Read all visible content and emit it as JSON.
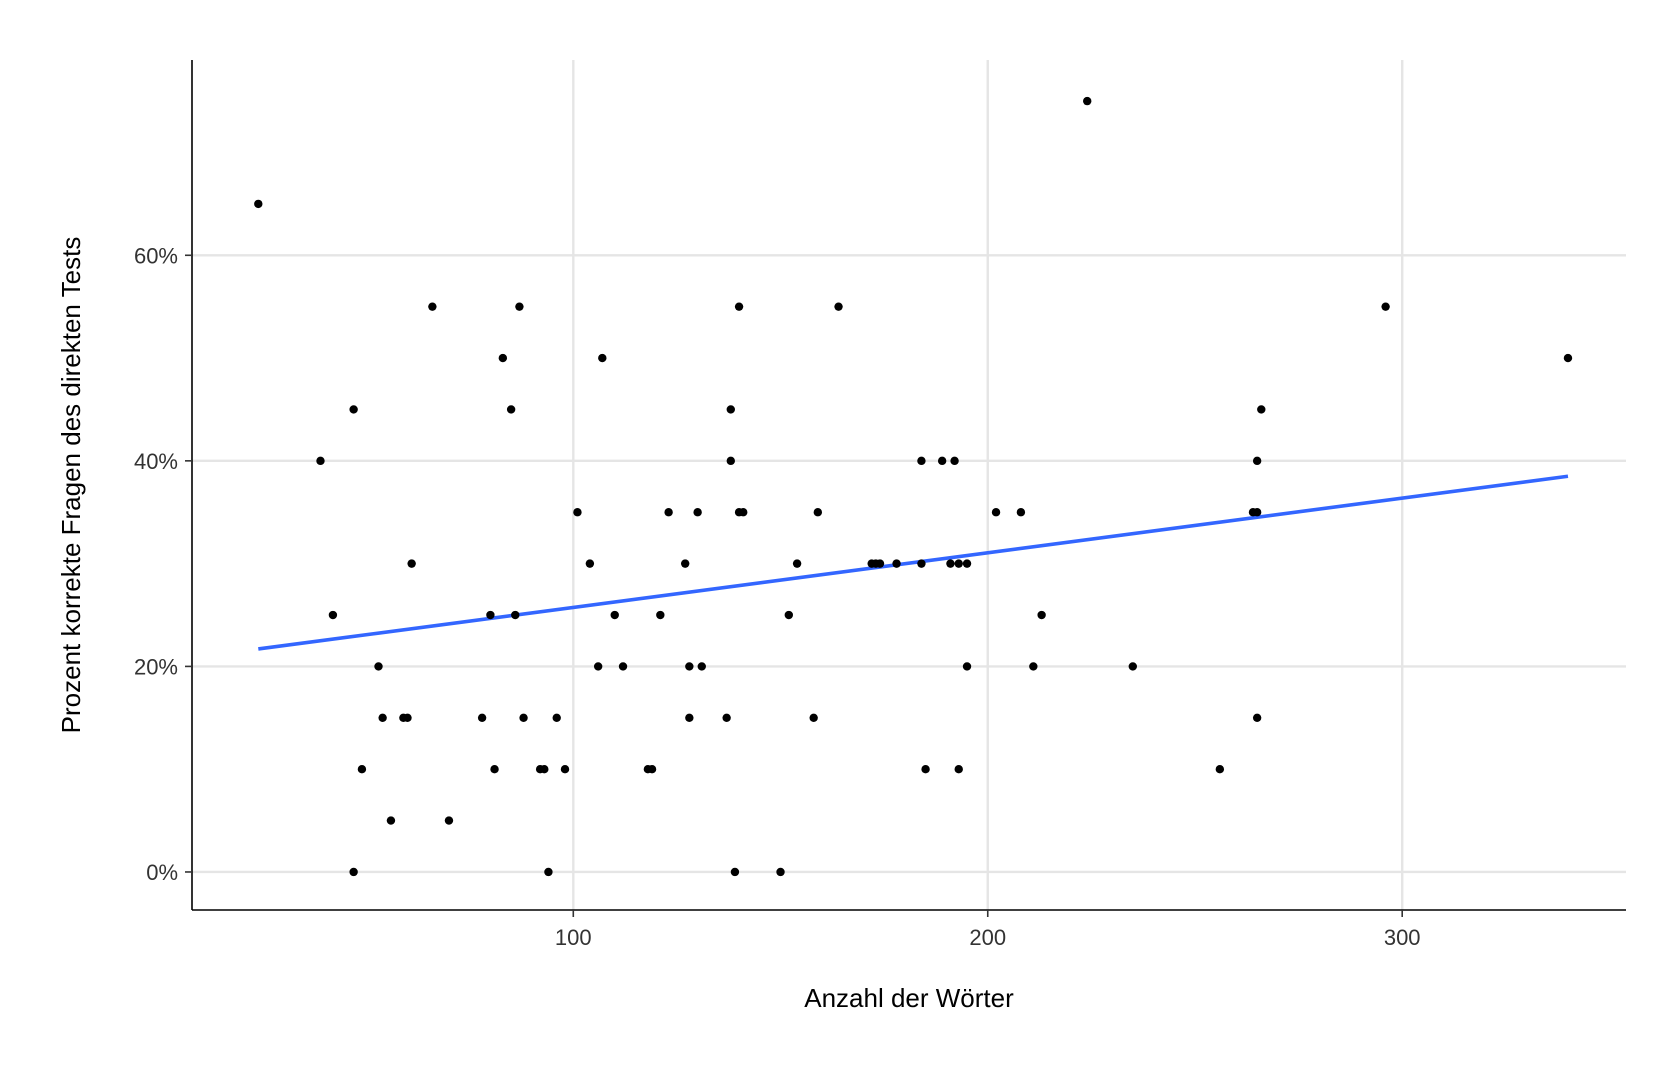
{
  "chart_data": {
    "type": "scatter",
    "title": "",
    "xlabel": "Anzahl der Wörter",
    "ylabel": "Prozent korrekte Fragen des direkten Tests",
    "xlim": [
      8,
      354
    ],
    "ylim": [
      -0.037,
      0.79
    ],
    "x_ticks": [
      100,
      200,
      300
    ],
    "x_tick_labels": [
      "100",
      "200",
      "300"
    ],
    "y_ticks": [
      0,
      0.2,
      0.4,
      0.6
    ],
    "y_tick_labels": [
      "0%",
      "20%",
      "40%",
      "60%"
    ],
    "grid": true,
    "legend": "none",
    "point_color": "#000000",
    "trend_color": "#3366ff",
    "points": [
      {
        "x": 24,
        "y": 0.65
      },
      {
        "x": 39,
        "y": 0.4
      },
      {
        "x": 42,
        "y": 0.25
      },
      {
        "x": 47,
        "y": 0.45
      },
      {
        "x": 47,
        "y": 0.0
      },
      {
        "x": 49,
        "y": 0.1
      },
      {
        "x": 53,
        "y": 0.2
      },
      {
        "x": 54,
        "y": 0.15
      },
      {
        "x": 56,
        "y": 0.05
      },
      {
        "x": 59,
        "y": 0.15
      },
      {
        "x": 60,
        "y": 0.15
      },
      {
        "x": 61,
        "y": 0.3
      },
      {
        "x": 66,
        "y": 0.55
      },
      {
        "x": 70,
        "y": 0.05
      },
      {
        "x": 78,
        "y": 0.15
      },
      {
        "x": 80,
        "y": 0.25
      },
      {
        "x": 81,
        "y": 0.1
      },
      {
        "x": 83,
        "y": 0.5
      },
      {
        "x": 85,
        "y": 0.45
      },
      {
        "x": 86,
        "y": 0.25
      },
      {
        "x": 87,
        "y": 0.55
      },
      {
        "x": 88,
        "y": 0.15
      },
      {
        "x": 92,
        "y": 0.1
      },
      {
        "x": 93,
        "y": 0.1
      },
      {
        "x": 94,
        "y": 0.0
      },
      {
        "x": 96,
        "y": 0.15
      },
      {
        "x": 98,
        "y": 0.1
      },
      {
        "x": 101,
        "y": 0.35
      },
      {
        "x": 104,
        "y": 0.3
      },
      {
        "x": 106,
        "y": 0.2
      },
      {
        "x": 107,
        "y": 0.5
      },
      {
        "x": 110,
        "y": 0.25
      },
      {
        "x": 112,
        "y": 0.2
      },
      {
        "x": 118,
        "y": 0.1
      },
      {
        "x": 119,
        "y": 0.1
      },
      {
        "x": 121,
        "y": 0.25
      },
      {
        "x": 123,
        "y": 0.35
      },
      {
        "x": 127,
        "y": 0.3
      },
      {
        "x": 128,
        "y": 0.2
      },
      {
        "x": 128,
        "y": 0.15
      },
      {
        "x": 130,
        "y": 0.35
      },
      {
        "x": 131,
        "y": 0.2
      },
      {
        "x": 137,
        "y": 0.15
      },
      {
        "x": 138,
        "y": 0.45
      },
      {
        "x": 138,
        "y": 0.4
      },
      {
        "x": 139,
        "y": 0.0
      },
      {
        "x": 140,
        "y": 0.55
      },
      {
        "x": 140,
        "y": 0.35
      },
      {
        "x": 141,
        "y": 0.35
      },
      {
        "x": 150,
        "y": 0.0
      },
      {
        "x": 152,
        "y": 0.25
      },
      {
        "x": 154,
        "y": 0.3
      },
      {
        "x": 158,
        "y": 0.15
      },
      {
        "x": 159,
        "y": 0.35
      },
      {
        "x": 164,
        "y": 0.55
      },
      {
        "x": 172,
        "y": 0.3
      },
      {
        "x": 173,
        "y": 0.3
      },
      {
        "x": 174,
        "y": 0.3
      },
      {
        "x": 178,
        "y": 0.3
      },
      {
        "x": 184,
        "y": 0.4
      },
      {
        "x": 184,
        "y": 0.3
      },
      {
        "x": 185,
        "y": 0.1
      },
      {
        "x": 189,
        "y": 0.4
      },
      {
        "x": 191,
        "y": 0.3
      },
      {
        "x": 192,
        "y": 0.4
      },
      {
        "x": 193,
        "y": 0.3
      },
      {
        "x": 193,
        "y": 0.1
      },
      {
        "x": 195,
        "y": 0.3
      },
      {
        "x": 195,
        "y": 0.2
      },
      {
        "x": 202,
        "y": 0.35
      },
      {
        "x": 208,
        "y": 0.35
      },
      {
        "x": 211,
        "y": 0.2
      },
      {
        "x": 213,
        "y": 0.25
      },
      {
        "x": 224,
        "y": 0.75
      },
      {
        "x": 235,
        "y": 0.2
      },
      {
        "x": 256,
        "y": 0.1
      },
      {
        "x": 264,
        "y": 0.35
      },
      {
        "x": 265,
        "y": 0.4
      },
      {
        "x": 265,
        "y": 0.35
      },
      {
        "x": 265,
        "y": 0.15
      },
      {
        "x": 266,
        "y": 0.45
      },
      {
        "x": 296,
        "y": 0.55
      },
      {
        "x": 340,
        "y": 0.5
      }
    ],
    "trend_line": {
      "x": [
        24,
        340
      ],
      "y": [
        0.217,
        0.385
      ]
    }
  }
}
